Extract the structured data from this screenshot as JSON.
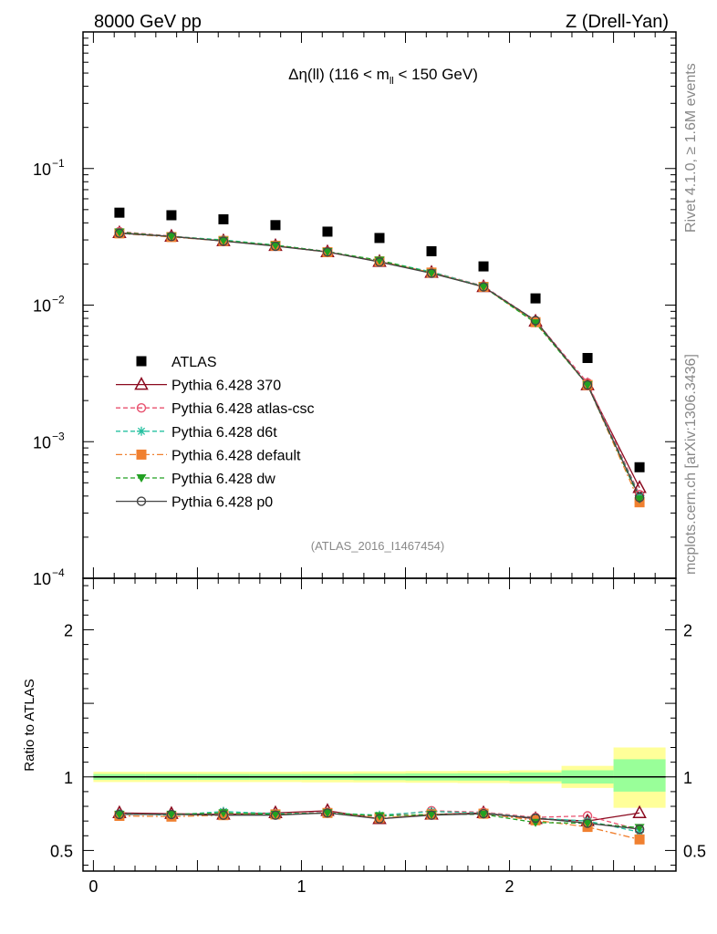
{
  "header": {
    "left": "8000 GeV pp",
    "right": "Z (Drell-Yan)"
  },
  "side": {
    "rivet": "Rivet 4.1.0, ≥ 1.6M events",
    "mcplots": "mcplots.cern.ch [arXiv:1306.3436]"
  },
  "watermark": "(ATLAS_2016_I1467454)",
  "chart_data": [
    {
      "type": "scatter",
      "panel": "main",
      "title": "Δη(ll) (116 < m_ll < 150 GeV)",
      "title_parts": {
        "pre": "Δη(ll) (116 < m",
        "sub": "ll",
        "post": " < 150 GeV)"
      },
      "yscale": "log",
      "ylim": [
        0.0001,
        1
      ],
      "xlim": [
        -0.05,
        2.8
      ],
      "ytick_labels": [
        "10",
        "10",
        "10",
        "10"
      ],
      "ytick_exponents": [
        "−1",
        "−2",
        "−3",
        "−4"
      ],
      "ytick_values": [
        0.1,
        0.01,
        0.001,
        0.0001
      ],
      "legend_position": "middle-left",
      "x": [
        0.125,
        0.375,
        0.625,
        0.875,
        1.125,
        1.375,
        1.625,
        1.875,
        2.125,
        2.375,
        2.625
      ],
      "series": [
        {
          "name": "ATLAS",
          "marker": "square-filled",
          "line": "none",
          "color": "#000000",
          "values": [
            0.0475,
            0.0455,
            0.0425,
            0.0385,
            0.0345,
            0.031,
            0.0248,
            0.0192,
            0.0112,
            0.0041,
            0.00065
          ]
        },
        {
          "name": "Pythia 6.428 370",
          "marker": "triangle-open",
          "line": "solid",
          "color": "#8b0a1f",
          "values": [
            0.0338,
            0.0318,
            0.0295,
            0.0272,
            0.0245,
            0.0208,
            0.0173,
            0.0136,
            0.0076,
            0.0026,
            0.00046
          ]
        },
        {
          "name": "Pythia 6.428 atlas-csc",
          "marker": "circle-open",
          "line": "dashed",
          "color": "#e8506e",
          "values": [
            0.0345,
            0.032,
            0.0297,
            0.0274,
            0.0247,
            0.021,
            0.0175,
            0.0138,
            0.0077,
            0.0027,
            0.00041
          ]
        },
        {
          "name": "Pythia 6.428 d6t",
          "marker": "star",
          "line": "dashed",
          "color": "#25c0a0",
          "values": [
            0.034,
            0.0318,
            0.03,
            0.0275,
            0.0246,
            0.0212,
            0.0175,
            0.0137,
            0.0076,
            0.0026,
            0.0004
          ]
        },
        {
          "name": "Pythia 6.428 default",
          "marker": "square-filled",
          "line": "dashdot",
          "color": "#f08030",
          "values": [
            0.0335,
            0.0315,
            0.0295,
            0.0272,
            0.0244,
            0.0209,
            0.0173,
            0.0136,
            0.0075,
            0.0026,
            0.00036
          ]
        },
        {
          "name": "Pythia 6.428 dw",
          "marker": "triangle-down-filled",
          "line": "dashed",
          "color": "#22a022",
          "values": [
            0.0342,
            0.0318,
            0.0297,
            0.0274,
            0.0246,
            0.0213,
            0.0172,
            0.0136,
            0.0074,
            0.0026,
            0.00038
          ]
        },
        {
          "name": "Pythia 6.428 p0",
          "marker": "circle-open",
          "line": "solid",
          "color": "#444444",
          "values": [
            0.0336,
            0.0318,
            0.0294,
            0.027,
            0.0245,
            0.0207,
            0.0171,
            0.0136,
            0.0077,
            0.0026,
            0.00039
          ]
        }
      ]
    },
    {
      "type": "scatter",
      "panel": "ratio",
      "ylabel": "Ratio to ATLAS",
      "ylim": [
        0.36,
        2.35
      ],
      "xlim": [
        -0.05,
        2.8
      ],
      "yticks": [
        "2",
        "1",
        "0.5"
      ],
      "ytick_values": [
        2,
        1,
        0.5
      ],
      "xticks": [
        "0",
        "1",
        "2"
      ],
      "xtick_values": [
        0,
        1,
        2
      ],
      "x": [
        0.125,
        0.375,
        0.625,
        0.875,
        1.125,
        1.375,
        1.625,
        1.875,
        2.125,
        2.375,
        2.625
      ],
      "bins": [
        [
          0,
          0.25
        ],
        [
          0.25,
          0.5
        ],
        [
          0.5,
          0.75
        ],
        [
          0.75,
          1.0
        ],
        [
          1.0,
          1.25
        ],
        [
          1.25,
          1.5
        ],
        [
          1.5,
          1.75
        ],
        [
          1.75,
          2.0
        ],
        [
          2.0,
          2.25
        ],
        [
          2.25,
          2.5
        ],
        [
          2.5,
          2.75
        ]
      ],
      "band_stat": [
        [
          0.98,
          1.02
        ],
        [
          0.98,
          1.02
        ],
        [
          0.98,
          1.02
        ],
        [
          0.98,
          1.02
        ],
        [
          0.98,
          1.02
        ],
        [
          0.978,
          1.022
        ],
        [
          0.976,
          1.024
        ],
        [
          0.975,
          1.025
        ],
        [
          0.97,
          1.03
        ],
        [
          0.955,
          1.045
        ],
        [
          0.9,
          1.12
        ]
      ],
      "band_total": [
        [
          0.965,
          1.035
        ],
        [
          0.965,
          1.035
        ],
        [
          0.965,
          1.035
        ],
        [
          0.965,
          1.035
        ],
        [
          0.963,
          1.037
        ],
        [
          0.962,
          1.038
        ],
        [
          0.96,
          1.04
        ],
        [
          0.958,
          1.042
        ],
        [
          0.955,
          1.045
        ],
        [
          0.925,
          1.075
        ],
        [
          0.79,
          1.2
        ]
      ],
      "series": [
        {
          "name": "Pythia 6.428 370",
          "values": [
            0.755,
            0.75,
            0.745,
            0.755,
            0.77,
            0.715,
            0.745,
            0.755,
            0.715,
            0.7,
            0.755
          ]
        },
        {
          "name": "Pythia 6.428 atlas-csc",
          "values": [
            0.745,
            0.745,
            0.745,
            0.745,
            0.76,
            0.73,
            0.77,
            0.76,
            0.725,
            0.735,
            0.64
          ]
        },
        {
          "name": "Pythia 6.428 d6t",
          "values": [
            0.75,
            0.74,
            0.765,
            0.75,
            0.755,
            0.74,
            0.765,
            0.755,
            0.72,
            0.7,
            0.625
          ]
        },
        {
          "name": "Pythia 6.428 default",
          "values": [
            0.735,
            0.73,
            0.74,
            0.745,
            0.755,
            0.72,
            0.745,
            0.75,
            0.705,
            0.66,
            0.575
          ]
        },
        {
          "name": "Pythia 6.428 dw",
          "values": [
            0.745,
            0.745,
            0.755,
            0.745,
            0.755,
            0.735,
            0.745,
            0.745,
            0.69,
            0.685,
            0.655
          ]
        },
        {
          "name": "Pythia 6.428 p0",
          "values": [
            0.745,
            0.745,
            0.74,
            0.74,
            0.755,
            0.715,
            0.74,
            0.75,
            0.72,
            0.685,
            0.645
          ]
        }
      ]
    }
  ]
}
